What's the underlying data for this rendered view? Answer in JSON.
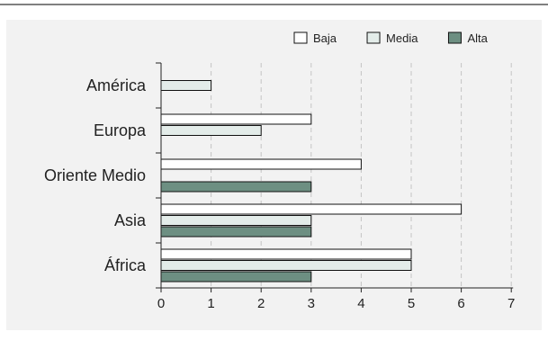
{
  "chart_data": {
    "type": "bar",
    "orientation": "horizontal",
    "categories": [
      "América",
      "Europa",
      "Oriente Medio",
      "Asia",
      "África"
    ],
    "series": [
      {
        "name": "Baja",
        "color": "#ffffff",
        "values": [
          0,
          3,
          4,
          6,
          5
        ]
      },
      {
        "name": "Media",
        "color": "#e3ece9",
        "values": [
          1,
          2,
          0,
          3,
          5
        ]
      },
      {
        "name": "Alta",
        "color": "#6d8f82",
        "values": [
          0,
          0,
          3,
          3,
          3
        ]
      }
    ],
    "xlim": [
      0,
      7
    ],
    "xticks": [
      0,
      1,
      2,
      3,
      4,
      5,
      6,
      7
    ],
    "grid": "vertical-dashed",
    "legend": "top-right",
    "panel_color": "#f2f2f2",
    "axis_color": "#222222"
  }
}
